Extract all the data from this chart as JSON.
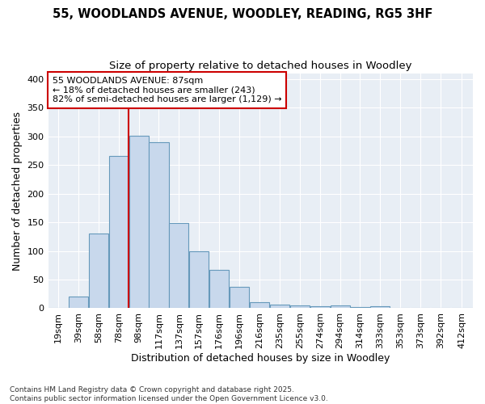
{
  "title_line1": "55, WOODLANDS AVENUE, WOODLEY, READING, RG5 3HF",
  "title_line2": "Size of property relative to detached houses in Woodley",
  "xlabel": "Distribution of detached houses by size in Woodley",
  "ylabel": "Number of detached properties",
  "bar_color": "#c8d8ec",
  "bar_edge_color": "#6699bb",
  "bin_labels": [
    "19sqm",
    "39sqm",
    "58sqm",
    "78sqm",
    "98sqm",
    "117sqm",
    "137sqm",
    "157sqm",
    "176sqm",
    "196sqm",
    "216sqm",
    "235sqm",
    "255sqm",
    "274sqm",
    "294sqm",
    "314sqm",
    "333sqm",
    "353sqm",
    "373sqm",
    "392sqm",
    "412sqm"
  ],
  "bin_edges": [
    9.5,
    29,
    48.5,
    68,
    87.5,
    107,
    126.5,
    146,
    165.5,
    185,
    204.5,
    224,
    243.5,
    263,
    282.5,
    302,
    321.5,
    341,
    360.5,
    380,
    399.5,
    421
  ],
  "bar_heights": [
    1,
    21,
    130,
    265,
    301,
    289,
    149,
    99,
    67,
    37,
    10,
    6,
    5,
    3,
    5,
    2,
    3,
    1,
    1,
    1,
    1
  ],
  "property_size": 87,
  "vline_color": "#cc0000",
  "annotation_text": "55 WOODLANDS AVENUE: 87sqm\n← 18% of detached houses are smaller (243)\n82% of semi-detached houses are larger (1,129) →",
  "annotation_box_facecolor": "#ffffff",
  "annotation_box_edgecolor": "#cc0000",
  "ylim": [
    0,
    410
  ],
  "yticks": [
    0,
    50,
    100,
    150,
    200,
    250,
    300,
    350,
    400
  ],
  "figure_bg": "#ffffff",
  "plot_bg": "#e8eef5",
  "grid_color": "#ffffff",
  "footer_text": "Contains HM Land Registry data © Crown copyright and database right 2025.\nContains public sector information licensed under the Open Government Licence v3.0.",
  "title_fontsize": 10.5,
  "subtitle_fontsize": 9.5,
  "axis_label_fontsize": 9,
  "tick_fontsize": 8,
  "annot_fontsize": 8
}
